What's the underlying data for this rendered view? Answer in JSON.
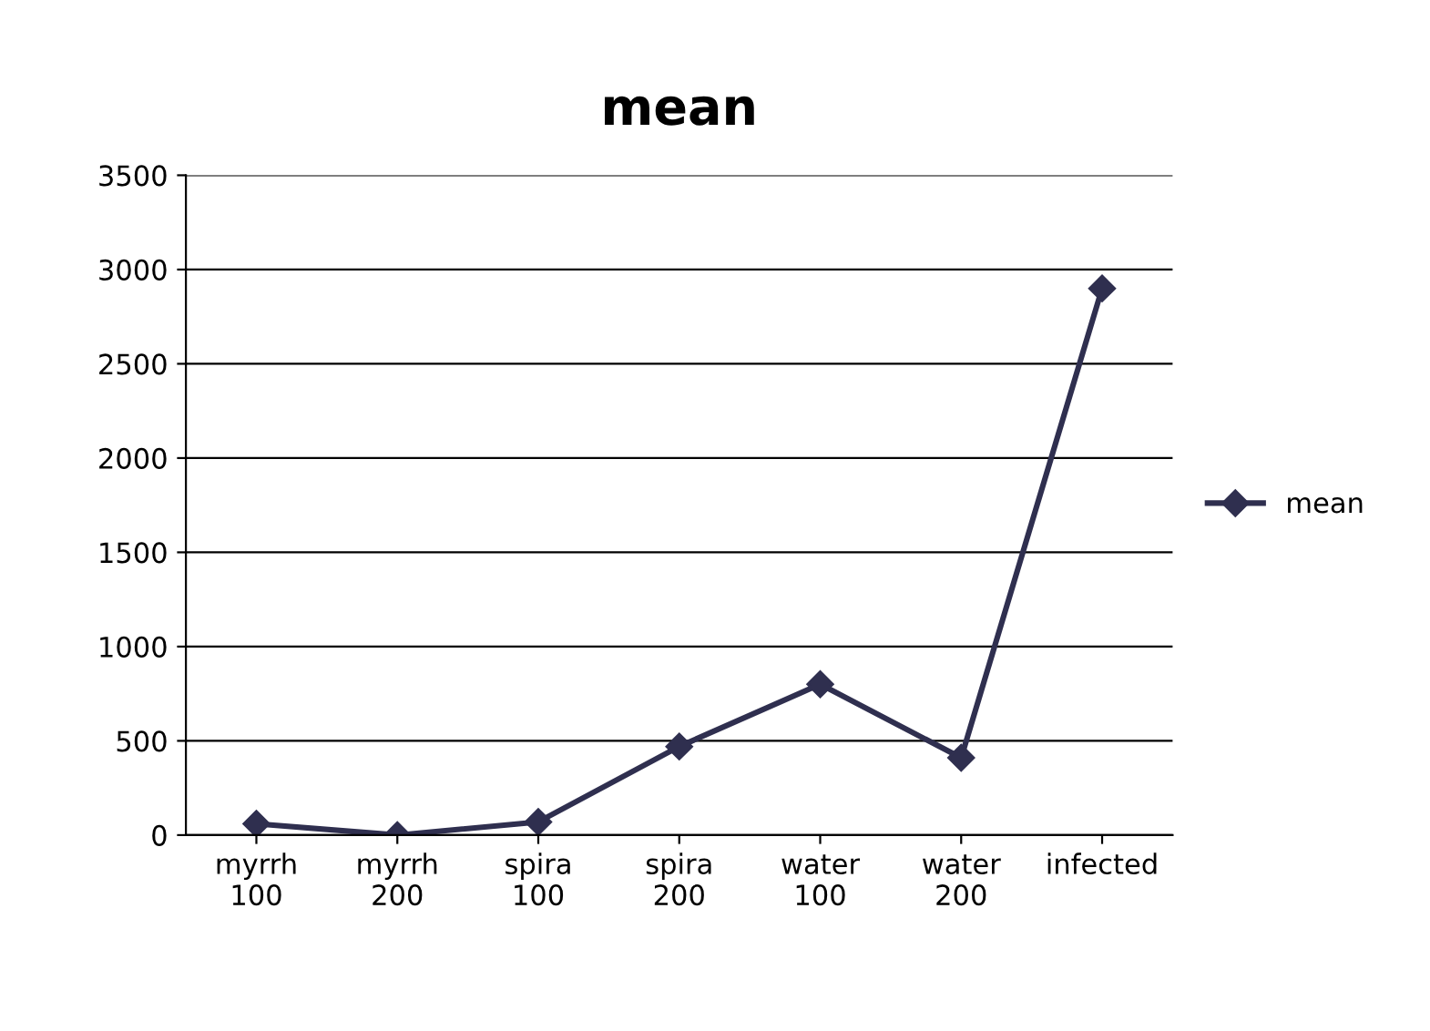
{
  "chart_data": {
    "type": "line",
    "title": "mean",
    "categories": [
      "myrrh\n100",
      "myrrh\n200",
      "spira\n100",
      "spira\n200",
      "water\n100",
      "water\n200",
      "infected"
    ],
    "series": [
      {
        "name": "mean",
        "color": "#2f2f4f",
        "values": [
          60,
          0,
          70,
          470,
          800,
          410,
          2900
        ]
      }
    ],
    "ylim": [
      0,
      3500
    ],
    "yticks": [
      0,
      500,
      1000,
      1500,
      2000,
      2500,
      3000,
      3500
    ],
    "grid": "y",
    "legend": "right",
    "marker": "diamond",
    "line_style": "solid"
  }
}
